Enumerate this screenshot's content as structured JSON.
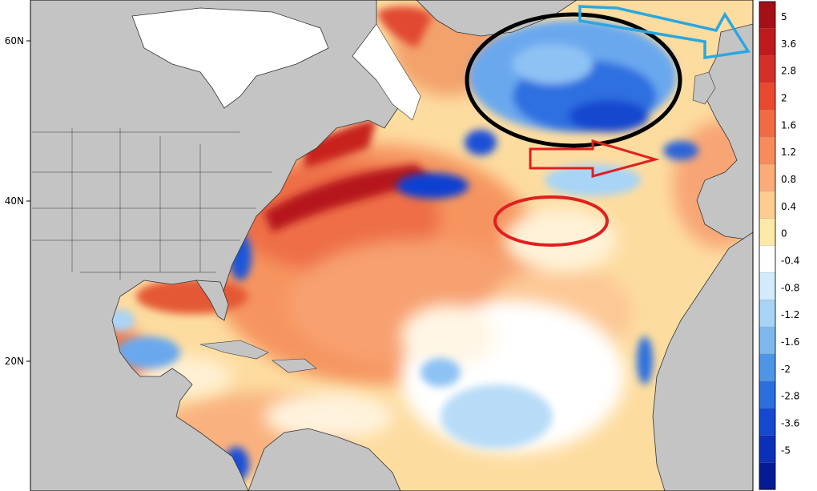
{
  "map": {
    "latitude_labels": [
      "60N",
      "40N",
      "20N"
    ],
    "colorbar": {
      "labels": [
        "5",
        "3.6",
        "2.8",
        "2",
        "1.6",
        "1.2",
        "0.8",
        "0.4",
        "0",
        "-0.4",
        "-0.8",
        "-1.2",
        "-1.6",
        "-2",
        "-2.8",
        "-3.6",
        "-5"
      ],
      "colors": [
        "#a50f15",
        "#c0191c",
        "#d62f27",
        "#e8492f",
        "#f26a44",
        "#f78b5c",
        "#fbac78",
        "#fdcc91",
        "#fee9a8",
        "#ffffff",
        "#d3ebfb",
        "#a8d4f6",
        "#7db8ef",
        "#4f95e6",
        "#2b6fde",
        "#1549d0",
        "#0a2fb8",
        "#061a97"
      ]
    },
    "colors": {
      "land": "#c4c4c4",
      "ice": "#ffffff",
      "warm_deep": "#b5141a",
      "cool_deep": "#0b3fd1"
    },
    "annotations": [
      {
        "shape": "ellipse",
        "color": "#000000",
        "label_name": "cold-anomaly-ellipse-north-atlantic"
      },
      {
        "shape": "ellipse",
        "color": "#e02020",
        "label_name": "azores-region-ellipse"
      },
      {
        "shape": "arrow",
        "color": "#e02020",
        "label_name": "eastward-red-arrow"
      },
      {
        "shape": "arrow",
        "color": "#2aa7e0",
        "label_name": "northeast-blue-arrow"
      }
    ]
  }
}
